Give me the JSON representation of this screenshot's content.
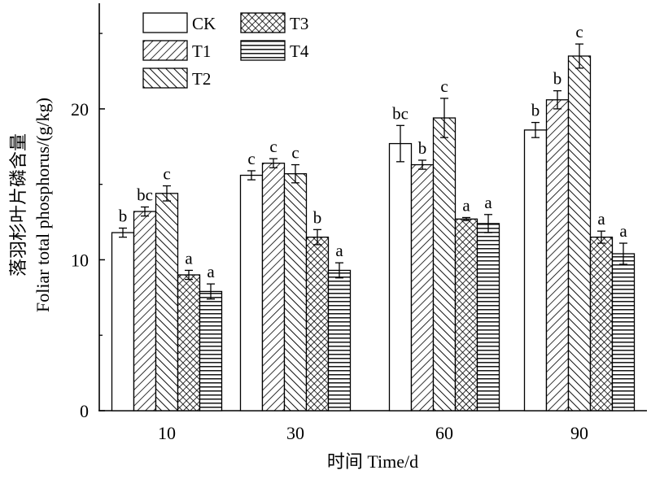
{
  "chart_data": {
    "type": "bar",
    "title": "",
    "xlabel": "时间 Time/d",
    "ylabel_cn": "落羽杉叶片磷含量",
    "ylabel_en": "Foliar total phosphorus/(g/kg)",
    "categories": [
      "10",
      "30",
      "60",
      "90"
    ],
    "ylim": [
      0,
      27
    ],
    "yticks": [
      0,
      10,
      20
    ],
    "grid": false,
    "legend_position": "top-left",
    "series": [
      {
        "name": "CK",
        "pattern": "blank",
        "values": [
          11.8,
          15.6,
          17.7,
          18.6
        ],
        "errors": [
          0.3,
          0.3,
          1.2,
          0.5
        ],
        "letters": [
          "b",
          "c",
          "bc",
          "b"
        ]
      },
      {
        "name": "T1",
        "pattern": "diag-right",
        "values": [
          13.2,
          16.4,
          16.3,
          20.6
        ],
        "errors": [
          0.3,
          0.3,
          0.3,
          0.6
        ],
        "letters": [
          "bc",
          "c",
          "b",
          "b"
        ]
      },
      {
        "name": "T2",
        "pattern": "diag-left",
        "values": [
          14.4,
          15.7,
          19.4,
          23.5
        ],
        "errors": [
          0.5,
          0.6,
          1.3,
          0.8
        ],
        "letters": [
          "c",
          "c",
          "c",
          "c"
        ]
      },
      {
        "name": "T3",
        "pattern": "crosshatch",
        "values": [
          9.0,
          11.5,
          12.7,
          11.5
        ],
        "errors": [
          0.3,
          0.5,
          0.1,
          0.4
        ],
        "letters": [
          "a",
          "b",
          "a",
          "a"
        ]
      },
      {
        "name": "T4",
        "pattern": "horizontal",
        "values": [
          7.9,
          9.3,
          12.4,
          10.4
        ],
        "errors": [
          0.5,
          0.5,
          0.6,
          0.7
        ],
        "letters": [
          "a",
          "a",
          "a",
          "a"
        ]
      }
    ]
  },
  "colors": {
    "stroke": "#000000",
    "background": "#ffffff"
  }
}
